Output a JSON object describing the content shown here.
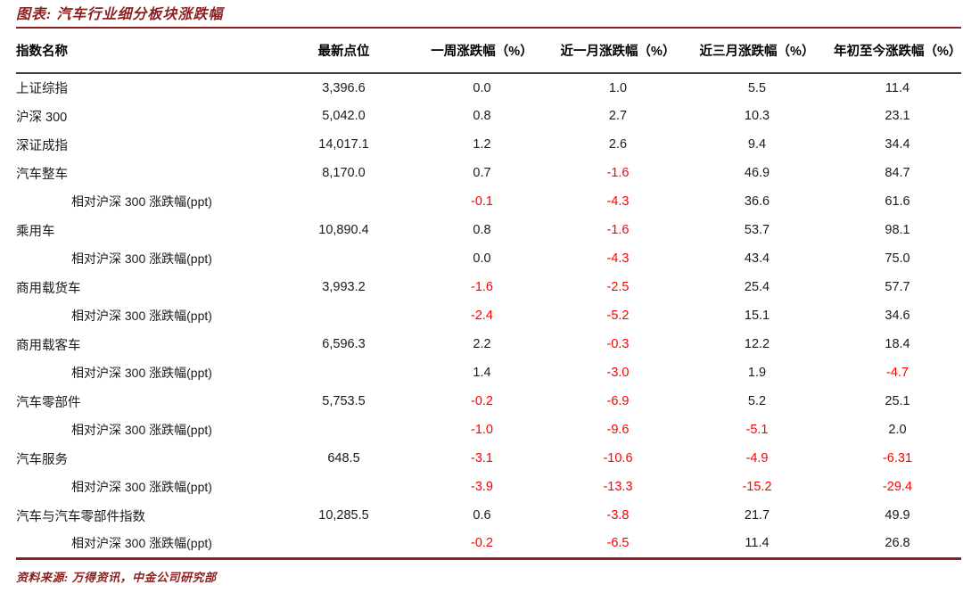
{
  "title": "图表: 汽车行业细分板块涨跌幅",
  "source": "资料来源: 万得资讯，中金公司研究部",
  "colors": {
    "accent_dark_red": "#8C1F1F",
    "negative_value_red": "#FF0000",
    "header_rule_gray": "#3d3d3d",
    "text_black": "#1a1a1a"
  },
  "chart_data": {
    "type": "table",
    "title": "汽车行业细分板块涨跌幅",
    "columns": [
      "指数名称",
      "最新点位",
      "一周涨跌幅（%）",
      "近一月涨跌幅（%）",
      "近三月涨跌幅（%）",
      "年初至今涨跌幅（%）"
    ],
    "rows": [
      {
        "name": "上证综指",
        "indent": false,
        "latest": "3,396.6",
        "week": "0.0",
        "month": "1.0",
        "quarter": "5.5",
        "ytd": "11.4"
      },
      {
        "name": "沪深 300",
        "indent": false,
        "latest": "5,042.0",
        "week": "0.8",
        "month": "2.7",
        "quarter": "10.3",
        "ytd": "23.1"
      },
      {
        "name": "深证成指",
        "indent": false,
        "latest": "14,017.1",
        "week": "1.2",
        "month": "2.6",
        "quarter": "9.4",
        "ytd": "34.4"
      },
      {
        "name": "汽车整车",
        "indent": false,
        "latest": "8,170.0",
        "week": "0.7",
        "month": "-1.6",
        "quarter": "46.9",
        "ytd": "84.7"
      },
      {
        "name": "相对沪深 300 涨跌幅(ppt)",
        "indent": true,
        "latest": "",
        "week": "-0.1",
        "month": "-4.3",
        "quarter": "36.6",
        "ytd": "61.6"
      },
      {
        "name": "乘用车",
        "indent": false,
        "latest": "10,890.4",
        "week": "0.8",
        "month": "-1.6",
        "quarter": "53.7",
        "ytd": "98.1"
      },
      {
        "name": "相对沪深 300 涨跌幅(ppt)",
        "indent": true,
        "latest": "",
        "week": "0.0",
        "month": "-4.3",
        "quarter": "43.4",
        "ytd": "75.0"
      },
      {
        "name": "商用载货车",
        "indent": false,
        "latest": "3,993.2",
        "week": "-1.6",
        "month": "-2.5",
        "quarter": "25.4",
        "ytd": "57.7"
      },
      {
        "name": "相对沪深 300 涨跌幅(ppt)",
        "indent": true,
        "latest": "",
        "week": "-2.4",
        "month": "-5.2",
        "quarter": "15.1",
        "ytd": "34.6"
      },
      {
        "name": "商用载客车",
        "indent": false,
        "latest": "6,596.3",
        "week": "2.2",
        "month": "-0.3",
        "quarter": "12.2",
        "ytd": "18.4"
      },
      {
        "name": "相对沪深 300 涨跌幅(ppt)",
        "indent": true,
        "latest": "",
        "week": "1.4",
        "month": "-3.0",
        "quarter": "1.9",
        "ytd": "-4.7"
      },
      {
        "name": "汽车零部件",
        "indent": false,
        "latest": "5,753.5",
        "week": "-0.2",
        "month": "-6.9",
        "quarter": "5.2",
        "ytd": "25.1"
      },
      {
        "name": "相对沪深 300 涨跌幅(ppt)",
        "indent": true,
        "latest": "",
        "week": "-1.0",
        "month": "-9.6",
        "quarter": "-5.1",
        "ytd": "2.0"
      },
      {
        "name": "汽车服务",
        "indent": false,
        "latest": "648.5",
        "week": "-3.1",
        "month": "-10.6",
        "quarter": "-4.9",
        "ytd": "-6.31"
      },
      {
        "name": "相对沪深 300 涨跌幅(ppt)",
        "indent": true,
        "latest": "",
        "week": "-3.9",
        "month": "-13.3",
        "quarter": "-15.2",
        "ytd": "-29.4"
      },
      {
        "name": "汽车与汽车零部件指数",
        "indent": false,
        "latest": "10,285.5",
        "week": "0.6",
        "month": "-3.8",
        "quarter": "21.7",
        "ytd": "49.9"
      },
      {
        "name": "相对沪深 300 涨跌幅(ppt)",
        "indent": true,
        "latest": "",
        "week": "-0.2",
        "month": "-6.5",
        "quarter": "11.4",
        "ytd": "26.8"
      }
    ]
  }
}
